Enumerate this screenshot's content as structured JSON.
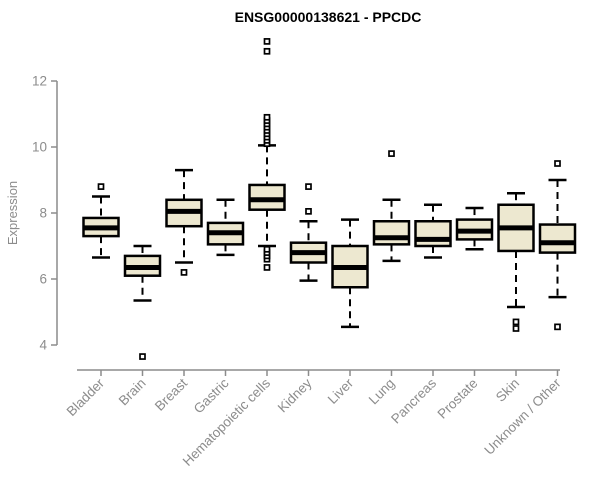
{
  "chart_data": {
    "type": "boxplot",
    "title": "ENSG00000138621 - PPCDC",
    "xlabel": "",
    "ylabel": "Expression",
    "ylim": [
      4,
      12
    ],
    "yticks": [
      4,
      6,
      8,
      10,
      12
    ],
    "grid": false,
    "legend": false,
    "colors": {
      "box_fill": "#ede8d0",
      "box_stroke": "#000000",
      "axis": "#8c8c8c",
      "tick_label": "#8c8c8c",
      "title": "#000000",
      "background": "#ffffff"
    },
    "categories": [
      "Bladder",
      "Brain",
      "Breast",
      "Gastric",
      "Hematopoietic cells",
      "Kidney",
      "Liver",
      "Lung",
      "Pancreas",
      "Prostate",
      "Skin",
      "Unknown / Other"
    ],
    "series": [
      {
        "name": "Bladder",
        "low": 6.65,
        "q1": 7.3,
        "median": 7.55,
        "q3": 7.85,
        "high": 8.5,
        "outliers": [
          8.8
        ]
      },
      {
        "name": "Brain",
        "low": 5.35,
        "q1": 6.1,
        "median": 6.35,
        "q3": 6.7,
        "high": 7.0,
        "outliers": [
          3.65
        ]
      },
      {
        "name": "Breast",
        "low": 6.5,
        "q1": 7.6,
        "median": 8.05,
        "q3": 8.4,
        "high": 9.3,
        "outliers": [
          6.2
        ]
      },
      {
        "name": "Gastric",
        "low": 6.73,
        "q1": 7.05,
        "median": 7.4,
        "q3": 7.7,
        "high": 8.4,
        "outliers": []
      },
      {
        "name": "Hematopoietic cells",
        "low": 7.0,
        "q1": 8.1,
        "median": 8.4,
        "q3": 8.85,
        "high": 10.05,
        "outliers": [
          6.35,
          6.6,
          6.7,
          6.8,
          6.9,
          10.1,
          10.2,
          10.3,
          10.4,
          10.5,
          10.6,
          10.7,
          10.8,
          10.9,
          12.9,
          13.2
        ]
      },
      {
        "name": "Kidney",
        "low": 5.95,
        "q1": 6.5,
        "median": 6.8,
        "q3": 7.1,
        "high": 7.75,
        "outliers": [
          8.05,
          8.8
        ]
      },
      {
        "name": "Liver",
        "low": 4.55,
        "q1": 5.75,
        "median": 6.35,
        "q3": 7.0,
        "high": 7.8,
        "outliers": []
      },
      {
        "name": "Lung",
        "low": 6.55,
        "q1": 7.05,
        "median": 7.25,
        "q3": 7.75,
        "high": 8.4,
        "outliers": [
          9.8
        ]
      },
      {
        "name": "Pancreas",
        "low": 6.65,
        "q1": 7.0,
        "median": 7.2,
        "q3": 7.75,
        "high": 8.25,
        "outliers": []
      },
      {
        "name": "Prostate",
        "low": 6.9,
        "q1": 7.2,
        "median": 7.45,
        "q3": 7.8,
        "high": 8.15,
        "outliers": []
      },
      {
        "name": "Skin",
        "low": 5.15,
        "q1": 6.85,
        "median": 7.55,
        "q3": 8.25,
        "high": 8.6,
        "outliers": [
          4.5,
          4.7
        ]
      },
      {
        "name": "Unknown / Other",
        "low": 5.45,
        "q1": 6.8,
        "median": 7.1,
        "q3": 7.65,
        "high": 9.0,
        "outliers": [
          4.55,
          9.5
        ]
      }
    ]
  }
}
